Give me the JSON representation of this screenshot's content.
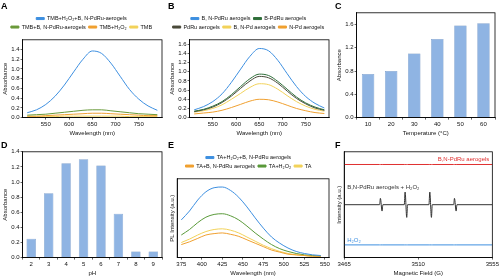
{
  "chart_data": [
    {
      "type": "line",
      "title": "A",
      "x_label": "Wavelength (nm)",
      "y_label": "Absorbance",
      "x": [
        510,
        530,
        550,
        570,
        590,
        610,
        630,
        650,
        670,
        690,
        710,
        730,
        750,
        770,
        790
      ],
      "series": [
        {
          "name": "TMB+H₂O₂+B, N-PdRu-aerogels",
          "color": "#3d8fe0",
          "values": [
            0.1,
            0.16,
            0.27,
            0.44,
            0.67,
            0.94,
            1.2,
            1.37,
            1.32,
            1.12,
            0.85,
            0.58,
            0.38,
            0.24,
            0.15
          ]
        },
        {
          "name": "TMB+B, N-PdRu-aerogels",
          "color": "#6a9a3a",
          "values": [
            0.05,
            0.06,
            0.07,
            0.09,
            0.11,
            0.13,
            0.15,
            0.16,
            0.16,
            0.14,
            0.12,
            0.1,
            0.08,
            0.07,
            0.06
          ]
        },
        {
          "name": "TMB+H₂O₂",
          "color": "#f0a030",
          "values": [
            0.03,
            0.03,
            0.04,
            0.05,
            0.06,
            0.07,
            0.08,
            0.09,
            0.09,
            0.08,
            0.07,
            0.06,
            0.05,
            0.04,
            0.04
          ]
        },
        {
          "name": "TMB",
          "color": "#f2d25a",
          "values": [
            0.02,
            0.02,
            0.02,
            0.02,
            0.03,
            0.03,
            0.03,
            0.03,
            0.03,
            0.03,
            0.03,
            0.02,
            0.02,
            0.02,
            0.02
          ]
        }
      ],
      "xlim": [
        500,
        800
      ],
      "xticks": [
        550,
        600,
        650,
        700,
        750
      ],
      "ylim": [
        0,
        1.6
      ],
      "yticks": [
        {
          "value": 0,
          "label": "0.0"
        },
        0.2,
        0.4,
        0.6,
        0.8,
        {
          "value": 1,
          "label": "1.0"
        },
        1.2,
        1.4
      ],
      "grid": false,
      "legend": "top"
    },
    {
      "type": "line",
      "title": "B",
      "x_label": "Wavelength (nm)",
      "y_label": "Absorbance",
      "x": [
        510,
        530,
        550,
        570,
        590,
        610,
        630,
        650,
        670,
        690,
        710,
        730,
        750,
        770,
        790
      ],
      "series": [
        {
          "name": "B, N-PdRu aerogels",
          "color": "#3d8fe0",
          "values": [
            0.17,
            0.24,
            0.35,
            0.52,
            0.77,
            1.06,
            1.34,
            1.51,
            1.46,
            1.25,
            0.96,
            0.68,
            0.46,
            0.31,
            0.21
          ]
        },
        {
          "name": "B-PdRu aerogels",
          "color": "#2f6f3a",
          "values": [
            0.14,
            0.18,
            0.25,
            0.35,
            0.5,
            0.68,
            0.85,
            0.95,
            0.92,
            0.79,
            0.62,
            0.45,
            0.32,
            0.23,
            0.17
          ]
        },
        {
          "name": "PdRu aerogels",
          "color": "#4a4a3a",
          "values": [
            0.13,
            0.17,
            0.23,
            0.33,
            0.47,
            0.64,
            0.8,
            0.9,
            0.87,
            0.75,
            0.58,
            0.42,
            0.3,
            0.21,
            0.16
          ]
        },
        {
          "name": "B, N-Pd aerogels",
          "color": "#f2d25a",
          "values": [
            0.12,
            0.15,
            0.2,
            0.28,
            0.4,
            0.53,
            0.66,
            0.74,
            0.72,
            0.62,
            0.48,
            0.35,
            0.25,
            0.18,
            0.14
          ]
        },
        {
          "name": "N-Pd aerogels",
          "color": "#f0a030",
          "values": [
            0.08,
            0.1,
            0.12,
            0.16,
            0.22,
            0.29,
            0.36,
            0.4,
            0.39,
            0.34,
            0.27,
            0.2,
            0.15,
            0.11,
            0.09
          ]
        }
      ],
      "xlim": [
        500,
        800
      ],
      "xticks": [
        550,
        600,
        650,
        700,
        750
      ],
      "ylim": [
        0,
        1.7
      ],
      "yticks": [
        {
          "value": 0,
          "label": "0.0"
        },
        0.2,
        0.4,
        0.6,
        0.8,
        {
          "value": 1,
          "label": "1.0"
        },
        1.2,
        1.4,
        1.6
      ],
      "grid": false,
      "legend": "top"
    },
    {
      "type": "bar",
      "title": "C",
      "x_label": "Temperature (°C)",
      "y_label": "Absorbance",
      "categories": [
        10,
        20,
        30,
        40,
        50,
        60
      ],
      "values": [
        0.75,
        0.8,
        1.1,
        1.35,
        1.58,
        1.62
      ],
      "color": "#8fb4e3",
      "ylim": [
        0,
        1.8
      ],
      "yticks": [
        {
          "value": 0,
          "label": "0.0"
        },
        0.4,
        0.8,
        1.2,
        1.6
      ],
      "grid": false
    },
    {
      "type": "bar",
      "title": "D",
      "x_label": "pH",
      "y_label": "Absorbance",
      "categories": [
        2,
        3,
        4,
        5,
        6,
        7,
        8,
        9
      ],
      "values": [
        0.25,
        0.85,
        1.25,
        1.3,
        1.22,
        0.58,
        0.08,
        0.08
      ],
      "color": "#8fb4e3",
      "ylim": [
        0,
        1.4
      ],
      "yticks": [
        {
          "value": 0,
          "label": "0.0"
        },
        0.2,
        0.4,
        0.6,
        0.8,
        {
          "value": 1,
          "label": "1.0"
        },
        1.2,
        1.4
      ],
      "grid": false
    },
    {
      "type": "line",
      "title": "E",
      "x_label": "Wavelength (nm)",
      "y_label": "PL Intensity (a.u.)",
      "x": [
        375,
        385,
        395,
        405,
        415,
        425,
        435,
        445,
        455,
        465,
        475,
        485,
        495,
        505,
        515,
        525,
        535,
        545
      ],
      "series": [
        {
          "name": "TA+H₂O₂+B, N-PdRu aerogels",
          "color": "#3d8fe0",
          "values": [
            0.55,
            0.68,
            0.84,
            0.96,
            1.02,
            1.03,
            0.98,
            0.88,
            0.74,
            0.58,
            0.43,
            0.3,
            0.21,
            0.14,
            0.09,
            0.06,
            0.04,
            0.03
          ]
        },
        {
          "name": "TA+B, N-PdRu aerogels",
          "color": "#f0a030",
          "values": [
            0.19,
            0.23,
            0.28,
            0.33,
            0.35,
            0.36,
            0.34,
            0.31,
            0.26,
            0.21,
            0.16,
            0.11,
            0.08,
            0.05,
            0.04,
            0.03,
            0.02,
            0.02
          ]
        },
        {
          "name": "TA+H₂O₂",
          "color": "#5a9a3a",
          "values": [
            0.33,
            0.41,
            0.51,
            0.59,
            0.63,
            0.64,
            0.61,
            0.55,
            0.46,
            0.36,
            0.27,
            0.19,
            0.13,
            0.09,
            0.06,
            0.04,
            0.03,
            0.02
          ]
        },
        {
          "name": "TA",
          "color": "#f2d25a",
          "values": [
            0.22,
            0.27,
            0.33,
            0.38,
            0.41,
            0.42,
            0.4,
            0.36,
            0.3,
            0.24,
            0.18,
            0.13,
            0.09,
            0.06,
            0.04,
            0.03,
            0.02,
            0.02
          ]
        }
      ],
      "xlim": [
        370,
        555
      ],
      "xticks": [
        375,
        400,
        425,
        450,
        475,
        500,
        525,
        550
      ],
      "ylim": [
        0,
        1.15
      ],
      "tick_labels": "x",
      "grid": false,
      "legend": "top"
    },
    {
      "type": "line",
      "title": "F",
      "x_label": "Magnetic Field (G)",
      "y_label": "Intensity (a.u.)",
      "x": [
        3465,
        3486.5,
        3487,
        3488,
        3488.5,
        3501.5,
        3502,
        3503,
        3503.5,
        3516.5,
        3517,
        3518,
        3518.5,
        3531.5,
        3532,
        3533,
        3533.5,
        3555
      ],
      "series": [
        {
          "name": "B,N-PdRu aerogels",
          "color": "#e03030",
          "values": [
            8.8,
            8.8,
            8.8,
            8.8,
            8.8,
            8.8,
            8.8,
            8.8,
            8.8,
            8.8,
            8.8,
            8.8,
            8.8,
            8.8,
            8.8,
            8.8,
            8.8,
            8.8
          ]
        },
        {
          "name": "B,N-PdRu aerogels + H₂O₂",
          "color": "#333333",
          "values": [
            5,
            5,
            5.6,
            4.4,
            5,
            5,
            6.2,
            3.8,
            5,
            5,
            6.2,
            3.8,
            5,
            5,
            5.6,
            4.4,
            5,
            5
          ]
        },
        {
          "name": "H₂O₂",
          "color": "#3d8fe0",
          "values": [
            1.2,
            1.2,
            1.2,
            1.2,
            1.2,
            1.2,
            1.2,
            1.2,
            1.2,
            1.2,
            1.2,
            1.2,
            1.2,
            1.2,
            1.2,
            1.2,
            1.2,
            1.2
          ]
        }
      ],
      "xlim": [
        3465,
        3555
      ],
      "xticks": [
        3465,
        3510,
        3555
      ],
      "ylim": [
        0,
        10
      ],
      "tick_labels": "x",
      "grid": false
    }
  ]
}
